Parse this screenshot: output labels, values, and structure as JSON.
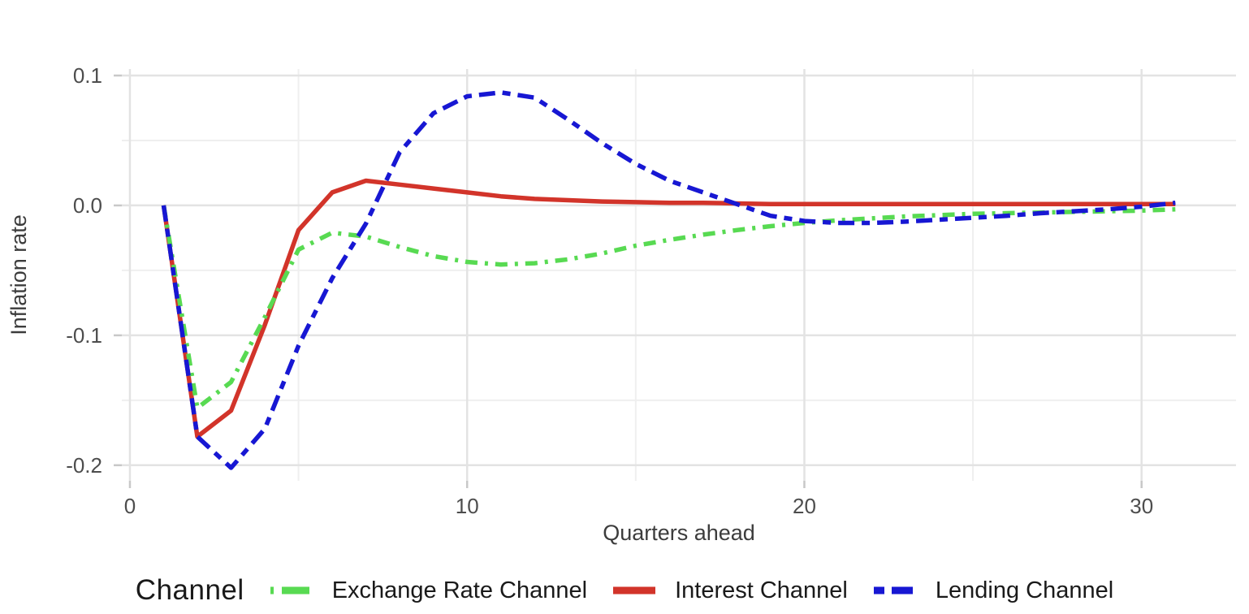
{
  "chart_data": {
    "type": "line",
    "title": "",
    "xlabel": "Quarters ahead",
    "ylabel": "Inflation rate",
    "legend_title": "Channel",
    "legend_position": "bottom",
    "grid": true,
    "xlim": [
      -0.24,
      32.8
    ],
    "ylim": [
      -0.212,
      0.105
    ],
    "x_ticks": [
      0,
      10,
      20,
      30
    ],
    "x_tick_labels": [
      "0",
      "10",
      "20",
      "30"
    ],
    "x_minor_ticks": [
      5,
      15,
      25
    ],
    "y_ticks": [
      0.1,
      0.0,
      -0.1,
      -0.2
    ],
    "y_tick_labels": [
      "0.1",
      "0.0",
      "-0.1",
      "-0.2"
    ],
    "y_minor_ticks": [
      0.05,
      -0.05,
      -0.15
    ],
    "x": [
      1,
      2,
      3,
      4,
      5,
      6,
      7,
      8,
      9,
      10,
      11,
      12,
      13,
      14,
      15,
      16,
      17,
      18,
      19,
      20,
      21,
      22,
      23,
      24,
      25,
      26,
      27,
      28,
      29,
      30,
      31
    ],
    "series": [
      {
        "name": "Exchange Rate Channel",
        "color": "#58da52",
        "linetype": "dashdot",
        "values": [
          0.0,
          -0.156,
          -0.136,
          -0.086,
          -0.034,
          -0.021,
          -0.024,
          -0.032,
          -0.039,
          -0.0435,
          -0.0455,
          -0.0445,
          -0.0415,
          -0.037,
          -0.031,
          -0.0265,
          -0.0225,
          -0.019,
          -0.016,
          -0.0135,
          -0.0115,
          -0.01,
          -0.0085,
          -0.0075,
          -0.0065,
          -0.006,
          -0.0055,
          -0.005,
          -0.0045,
          -0.004,
          -0.003
        ]
      },
      {
        "name": "Interest Channel",
        "color": "#d2342a",
        "linetype": "solid",
        "values": [
          0.0,
          -0.178,
          -0.158,
          -0.092,
          -0.019,
          0.01,
          0.019,
          0.016,
          0.013,
          0.01,
          0.007,
          0.005,
          0.004,
          0.003,
          0.0025,
          0.002,
          0.002,
          0.0015,
          0.001,
          0.001,
          0.001,
          0.001,
          0.001,
          0.001,
          0.001,
          0.001,
          0.001,
          0.001,
          0.001,
          0.001,
          0.001
        ]
      },
      {
        "name": "Lending Channel",
        "color": "#1717d3",
        "linetype": "dashed",
        "values": [
          0.0,
          -0.178,
          -0.202,
          -0.172,
          -0.108,
          -0.056,
          -0.014,
          0.041,
          0.071,
          0.084,
          0.087,
          0.083,
          0.066,
          0.048,
          0.032,
          0.019,
          0.01,
          0.001,
          -0.008,
          -0.012,
          -0.0135,
          -0.0135,
          -0.0125,
          -0.011,
          -0.0095,
          -0.008,
          -0.006,
          -0.0045,
          -0.003,
          -0.001,
          0.002
        ]
      }
    ]
  }
}
